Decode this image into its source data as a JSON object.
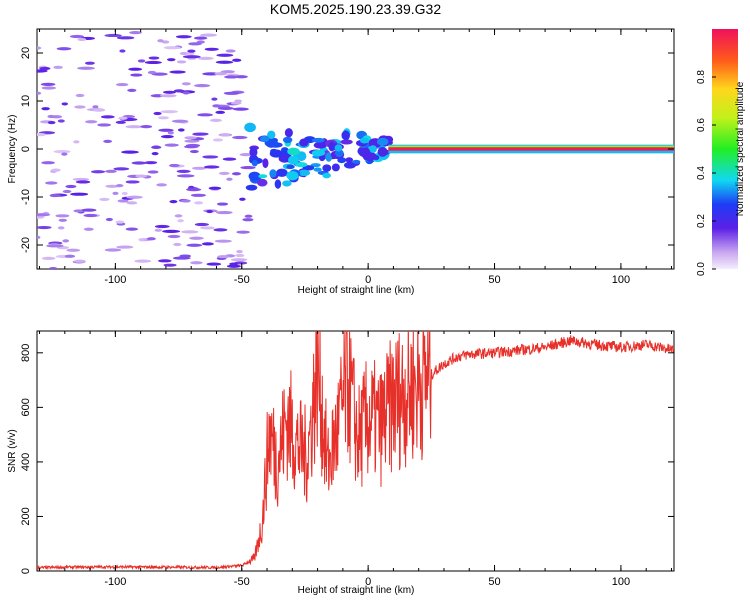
{
  "title": "KOM5.2025.190.23.39.G32",
  "colorbar": {
    "label": "Normalized spectral amplitude",
    "ticks": [
      "0.0",
      "0.2",
      "0.4",
      "0.6",
      "0.8"
    ],
    "tick_values": [
      0.0,
      0.2,
      0.4,
      0.6,
      0.8
    ],
    "range": [
      0,
      1
    ]
  },
  "chart_data": [
    {
      "type": "heatmap",
      "xlabel": "Height of straight line (km)",
      "ylabel": "Frequency (Hz)",
      "xlim": [
        -131,
        121
      ],
      "ylim": [
        -25,
        25
      ],
      "xticks": [
        -100,
        -50,
        0,
        50,
        100
      ],
      "xtick_labels": [
        "-100",
        "-50",
        "0",
        "50",
        "100"
      ],
      "yticks": [
        -20,
        -10,
        0,
        10,
        20
      ],
      "ytick_labels": [
        "-20",
        "-10",
        "0",
        "10",
        "20"
      ],
      "description_segments": [
        {
          "x_range": [
            -131,
            -47
          ],
          "level": "low",
          "note": "scattered noise"
        },
        {
          "x_range": [
            -47,
            8
          ],
          "level": "medium",
          "note": "broadening near 0 Hz"
        },
        {
          "x_range": [
            8,
            121
          ],
          "level": "high",
          "note": "narrow line at 0 Hz"
        }
      ],
      "signal_frequency_hz": 0
    },
    {
      "type": "line",
      "xlabel": "Height of straight line (km)",
      "ylabel": "SNR (v/v)",
      "xlim": [
        -131,
        121
      ],
      "ylim": [
        0,
        880
      ],
      "xticks": [
        -100,
        -50,
        0,
        50,
        100
      ],
      "xtick_labels": [
        "-100",
        "-50",
        "0",
        "50",
        "100"
      ],
      "yticks": [
        0,
        200,
        400,
        600,
        800
      ],
      "ytick_labels": [
        "0",
        "200",
        "400",
        "600",
        "800"
      ],
      "color": "#e8302a",
      "x": [
        -131,
        -120,
        -100,
        -80,
        -60,
        -50,
        -45,
        -42,
        -39,
        -36,
        -32,
        -28,
        -24,
        -20,
        -16,
        -12,
        -8,
        -4,
        0,
        5,
        10,
        15,
        20,
        25,
        30,
        35,
        40,
        50,
        60,
        70,
        80,
        90,
        100,
        110,
        121
      ],
      "y": [
        12,
        14,
        15,
        14,
        13,
        20,
        45,
        170,
        520,
        400,
        560,
        460,
        420,
        750,
        380,
        520,
        700,
        480,
        560,
        530,
        620,
        660,
        690,
        720,
        760,
        785,
        795,
        800,
        810,
        820,
        845,
        830,
        820,
        830,
        810
      ]
    }
  ]
}
